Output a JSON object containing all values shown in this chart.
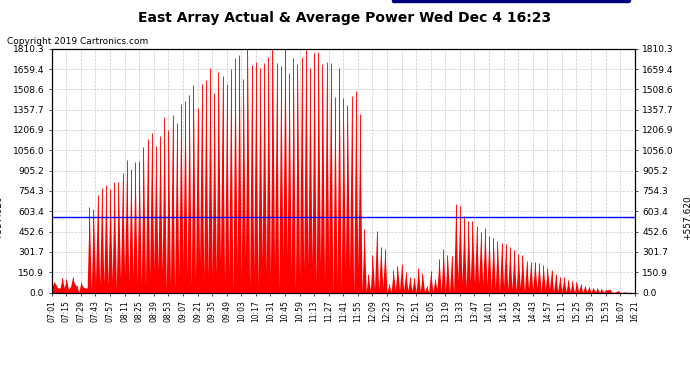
{
  "title": "East Array Actual & Average Power Wed Dec 4 16:23",
  "copyright": "Copyright 2019 Cartronics.com",
  "average_value": 557.62,
  "y_max": 1810.3,
  "y_ticks": [
    0.0,
    150.9,
    301.7,
    452.6,
    603.4,
    754.3,
    905.2,
    1056.0,
    1206.9,
    1357.7,
    1508.6,
    1659.4,
    1810.3
  ],
  "average_label": "557.620",
  "legend_avg_color": "#0000cc",
  "legend_east_color": "#ff0000",
  "bg_color": "#ffffff",
  "grid_color": "#bbbbbb",
  "bar_color": "#ff0000",
  "avg_line_color": "#0000ff",
  "x_labels": [
    "07:01",
    "07:15",
    "07:29",
    "07:43",
    "07:57",
    "08:11",
    "08:25",
    "08:39",
    "08:53",
    "09:07",
    "09:21",
    "09:35",
    "09:49",
    "10:03",
    "10:17",
    "10:31",
    "10:45",
    "10:59",
    "11:13",
    "11:27",
    "11:41",
    "11:55",
    "12:09",
    "12:23",
    "12:37",
    "12:51",
    "13:05",
    "13:19",
    "13:33",
    "13:47",
    "14:01",
    "14:15",
    "14:29",
    "14:43",
    "14:57",
    "15:11",
    "15:25",
    "15:39",
    "15:53",
    "16:07",
    "16:21"
  ]
}
